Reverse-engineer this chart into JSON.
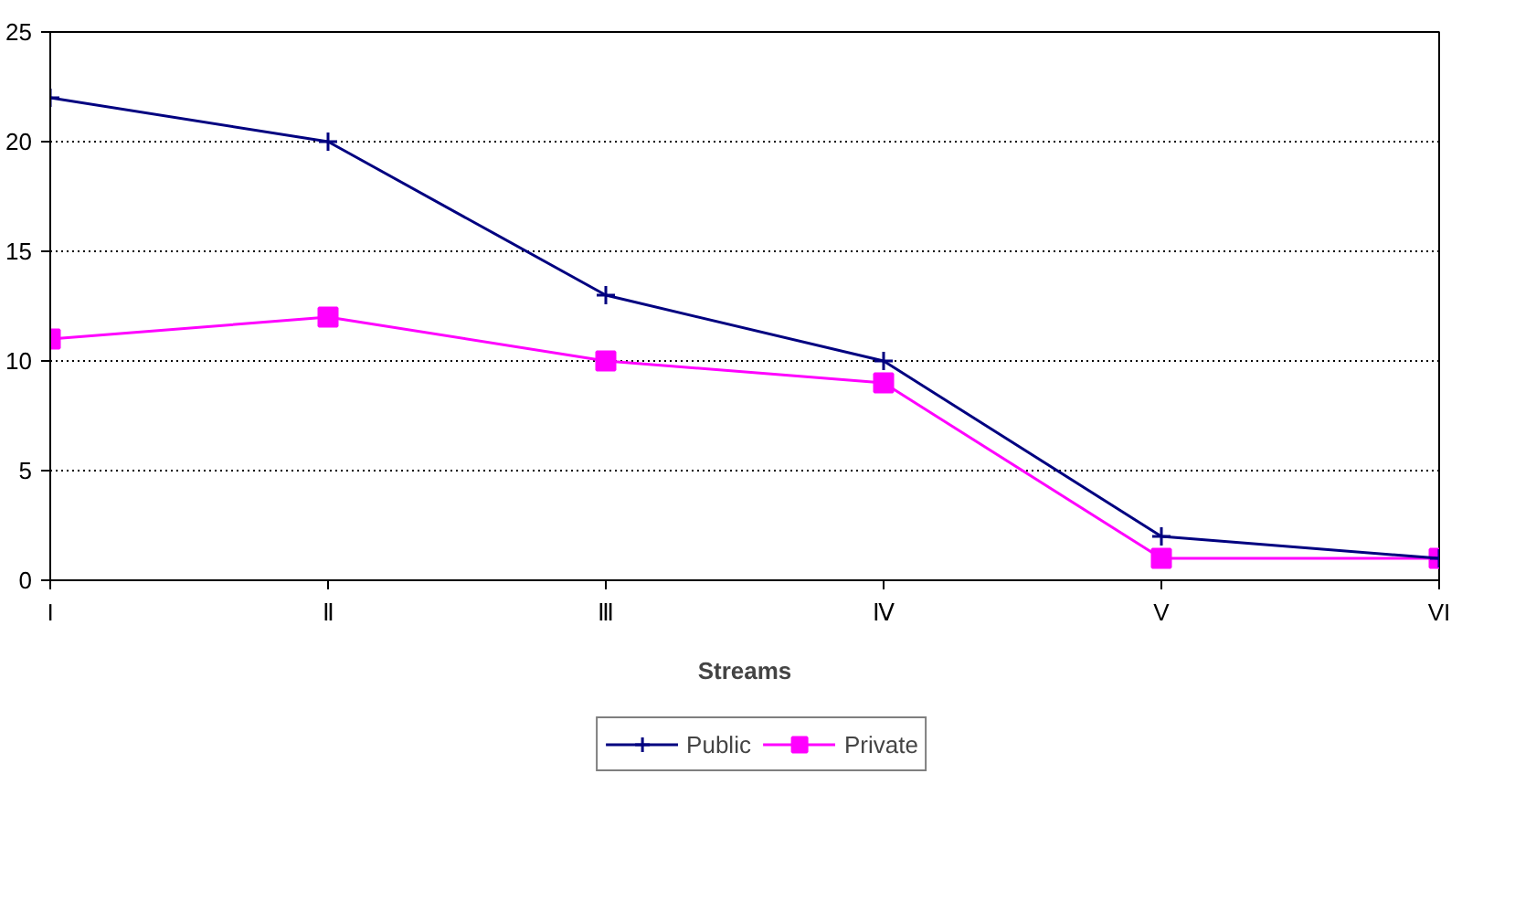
{
  "chart_data": {
    "type": "line",
    "xlabel": "Streams",
    "categories": [
      "I",
      "Ⅱ",
      "Ⅲ",
      "Ⅳ",
      "V",
      "VI"
    ],
    "series": [
      {
        "name": "Public",
        "color": "#000080",
        "values": [
          22,
          20,
          13,
          10,
          2,
          1
        ],
        "marker": "cross"
      },
      {
        "name": "Private",
        "color": "#ff00ff",
        "values": [
          11,
          12,
          10,
          9,
          1,
          1
        ],
        "marker": "square"
      }
    ],
    "ylim": [
      0,
      25
    ],
    "yticks": [
      0,
      5,
      10,
      15,
      20,
      25
    ],
    "grid": "y",
    "legend": "bottom",
    "line_style": "solid"
  }
}
